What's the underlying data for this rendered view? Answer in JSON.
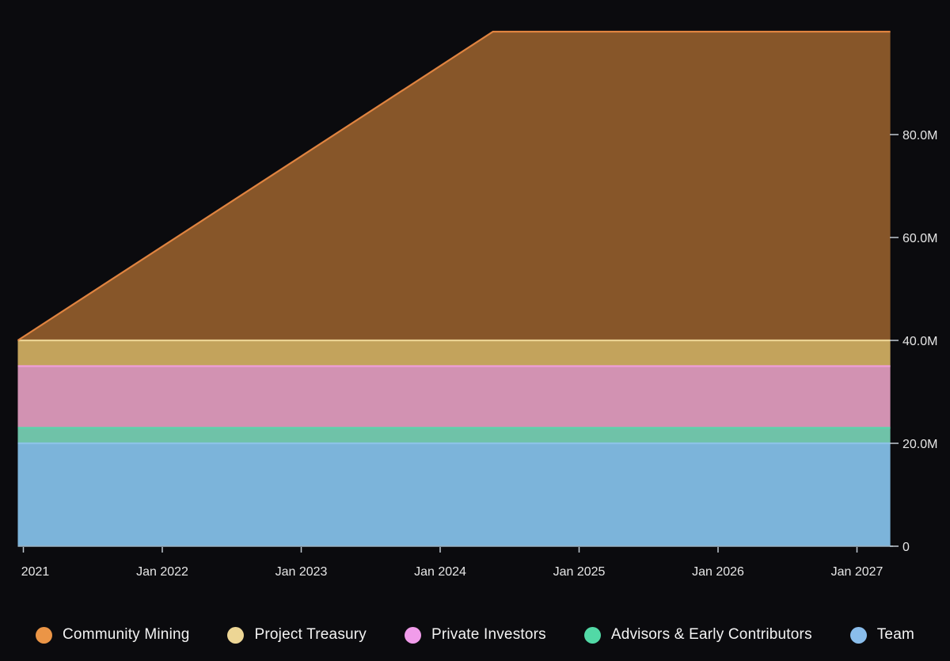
{
  "colors": {
    "background": "#0b0b0e",
    "axis_line": "#9db4c4",
    "tick_mark": "#c2cbd2",
    "axis_text": "#e6e6e6",
    "legend_text": "#f3f3f3"
  },
  "chart_data": {
    "type": "area",
    "stacked": true,
    "title": "",
    "x_unit": "years_since_jan_2021",
    "x_range_years": [
      -0.04,
      6.24
    ],
    "x_axis": {
      "ticks": [
        {
          "label": "2021",
          "year": 0,
          "label_dx": 15
        },
        {
          "label": "Jan 2022",
          "year": 1,
          "label_dx": 0
        },
        {
          "label": "Jan 2023",
          "year": 2,
          "label_dx": 0
        },
        {
          "label": "Jan 2024",
          "year": 3,
          "label_dx": 0
        },
        {
          "label": "Jan 2025",
          "year": 4,
          "label_dx": 0
        },
        {
          "label": "Jan 2026",
          "year": 5,
          "label_dx": 0
        },
        {
          "label": "Jan 2027",
          "year": 6,
          "label_dx": 0
        }
      ]
    },
    "y_axis": {
      "unit": "tokens (millions)",
      "ylim": [
        0,
        100
      ],
      "ticks": [
        {
          "label": "0",
          "value": 0
        },
        {
          "label": "20.0M",
          "value": 20
        },
        {
          "label": "40.0M",
          "value": 40
        },
        {
          "label": "60.0M",
          "value": 60
        },
        {
          "label": "80.0M",
          "value": 80
        }
      ]
    },
    "series": [
      {
        "name": "Team",
        "fill": "#7cb4da",
        "stroke": "#8cc3e6",
        "legend_color": "#8abdeb",
        "points": [
          [
            -0.04,
            20
          ],
          [
            6.24,
            20
          ]
        ]
      },
      {
        "name": "Advisors & Early Contributors",
        "fill": "#6fc2a8",
        "stroke": "#57d5aa",
        "legend_color": "#52d9a6",
        "points": [
          [
            -0.04,
            3
          ],
          [
            6.24,
            3
          ]
        ]
      },
      {
        "name": "Private Investors",
        "fill": "#d292b2",
        "stroke": "#ee9fd9",
        "legend_color": "#f19cea",
        "points": [
          [
            -0.04,
            12
          ],
          [
            6.24,
            12
          ]
        ]
      },
      {
        "name": "Project Treasury",
        "fill": "#c3a35c",
        "stroke": "#ebd292",
        "legend_color": "#edd695",
        "points": [
          [
            -0.04,
            5
          ],
          [
            6.24,
            5
          ]
        ]
      },
      {
        "name": "Community Mining",
        "fill": "#875629",
        "stroke": "#e08440",
        "legend_color": "#eb9546",
        "points": [
          [
            -0.04,
            0
          ],
          [
            3.38,
            60
          ],
          [
            6.24,
            60
          ]
        ]
      }
    ],
    "legend_order": [
      4,
      3,
      2,
      1,
      0
    ]
  }
}
